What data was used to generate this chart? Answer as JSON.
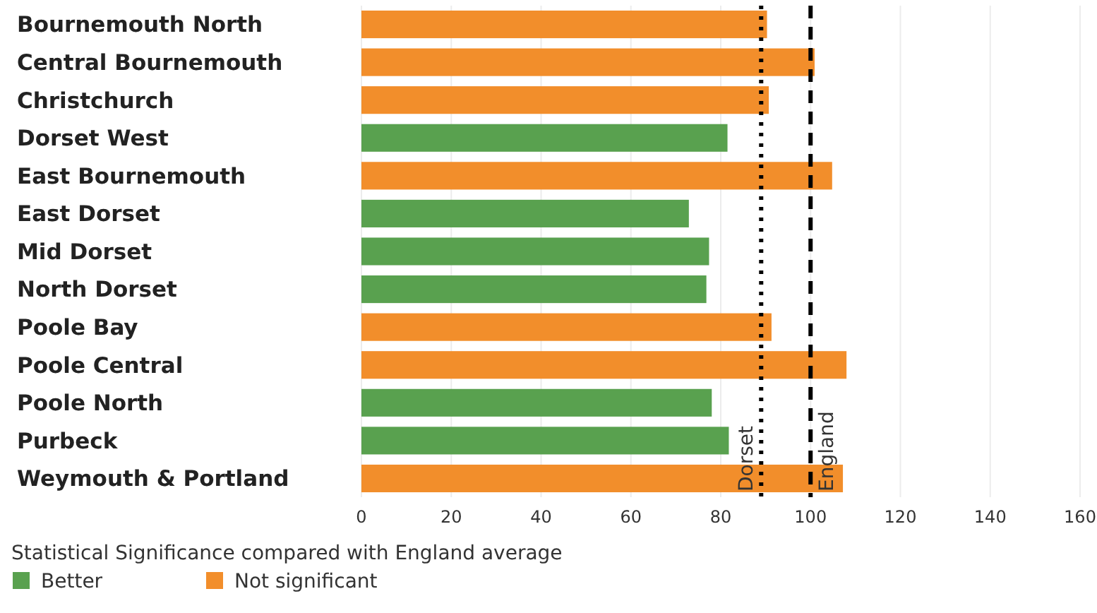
{
  "chart_data": {
    "type": "bar",
    "orientation": "horizontal",
    "categories": [
      "Bournemouth North",
      "Central Bournemouth",
      "Christchurch",
      "Dorset West",
      "East Bournemouth",
      "East Dorset",
      "Mid Dorset",
      "North Dorset",
      "Poole Bay",
      "Poole Central",
      "Poole North",
      "Purbeck",
      "Weymouth & Portland"
    ],
    "series": [
      {
        "name": "Better",
        "color": "#59a14f",
        "values": [
          null,
          null,
          null,
          81.5,
          null,
          72.9,
          77.4,
          76.8,
          null,
          null,
          78.0,
          81.8,
          null
        ]
      },
      {
        "name": "Not significant",
        "color": "#f28e2b",
        "values": [
          90.3,
          100.9,
          90.7,
          null,
          104.8,
          null,
          null,
          null,
          91.3,
          108.0,
          null,
          null,
          107.2
        ]
      }
    ],
    "xlim": [
      0,
      160
    ],
    "xticks": [
      0,
      20,
      40,
      60,
      80,
      100,
      120,
      140,
      160
    ],
    "grid": "x",
    "legend": "bottom left",
    "legend_title": "Statistical Significance compared with England average",
    "ref_lines": [
      {
        "axis": "x",
        "value": 89,
        "label": "Dorset",
        "line_style": "dotted",
        "color": "#000000"
      },
      {
        "axis": "x",
        "value": 100,
        "label": "England",
        "line_style": "dashed",
        "color": "#000000"
      }
    ]
  }
}
